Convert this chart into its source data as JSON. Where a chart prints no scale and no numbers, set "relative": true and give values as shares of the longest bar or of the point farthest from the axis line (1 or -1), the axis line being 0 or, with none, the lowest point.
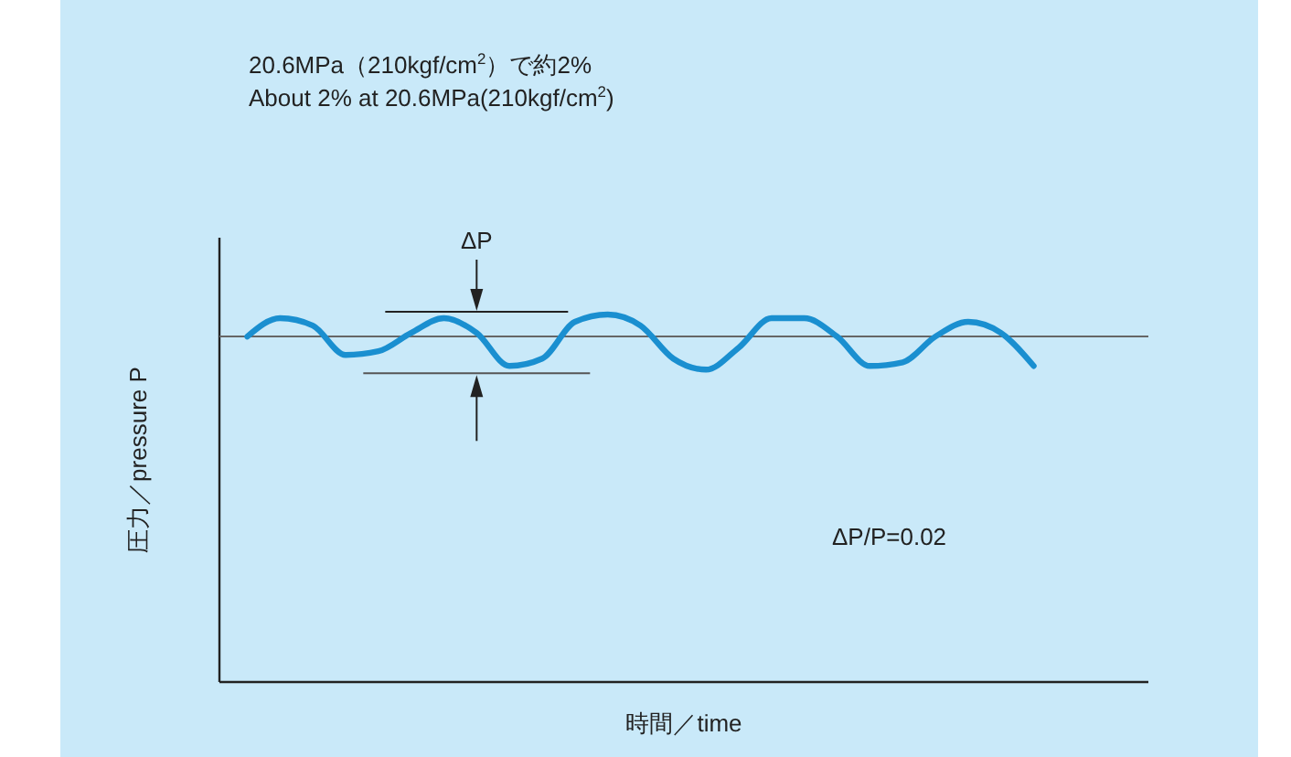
{
  "chart_data": {
    "type": "line",
    "title": "20.6MPa（210kgf/cm$^{2}$）で約2%",
    "subtitle": "About 2% at 20.6MPa(210kgf/cm$^{2}$)",
    "xlabel": "時間／time",
    "ylabel": "圧力／pressure P",
    "relative": true,
    "categories": [
      null,
      null,
      null,
      null,
      null,
      null,
      null,
      null,
      null,
      null,
      null,
      null,
      null,
      null,
      null,
      null,
      null,
      null,
      null,
      null,
      null,
      null,
      null,
      null,
      null
    ],
    "series": [
      {
        "color": "#1a8fd0",
        "values": [
          0.94,
          0.99,
          0.97,
          0.89,
          0.9,
          0.95,
          0.99,
          0.95,
          0.86,
          0.88,
          0.98,
          1,
          0.97,
          0.88,
          0.85,
          0.91,
          0.99,
          0.99,
          0.94,
          0.86,
          0.87,
          0.94,
          0.98,
          0.95,
          0.86
        ]
      }
    ],
    "ref_lines": [
      {
        "axis": "y",
        "value": 0.94,
        "color": "#666666"
      }
    ],
    "annotations": [
      "ΔP",
      "ΔP/P=0.02"
    ],
    "line_style": "solid"
  }
}
